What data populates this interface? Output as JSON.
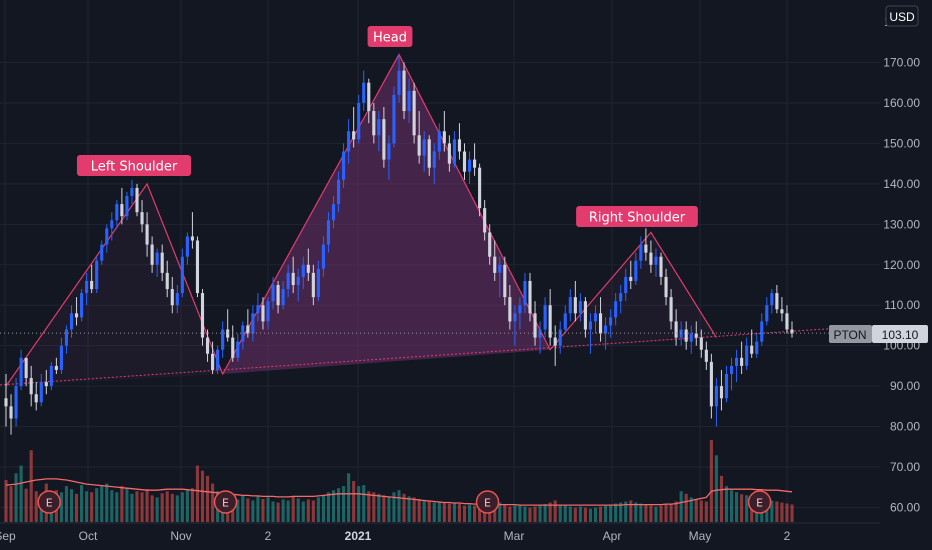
{
  "chart_data": {
    "type": "candlestick",
    "symbol": "PTON",
    "currency": "USD",
    "last_price": "103.10",
    "ylim": [
      57,
      180
    ],
    "y_ticks": [
      "60.00",
      "70.00",
      "80.00",
      "90.00",
      "100.00",
      "110.00",
      "120.00",
      "130.00",
      "140.00",
      "150.00",
      "160.00",
      "170.00"
    ],
    "x_ticks": [
      "Sep",
      "Oct",
      "Nov",
      "2",
      "2021",
      "Mar",
      "Apr",
      "May",
      "2"
    ],
    "x_tick_bold": "2021",
    "pattern": {
      "labels": [
        "Left Shoulder",
        "Head",
        "Right Shoulder"
      ],
      "points": [
        {
          "i": 0,
          "price": 90
        },
        {
          "i": 28,
          "price": 140
        },
        {
          "i": 43,
          "price": 93
        },
        {
          "i": 78,
          "price": 172
        },
        {
          "i": 108,
          "price": 99
        },
        {
          "i": 128,
          "price": 128
        },
        {
          "i": 141,
          "price": 102
        },
        {
          "i": 167,
          "price": 105.5
        }
      ]
    },
    "earnings_marker": "E",
    "earnings_at": [
      5,
      40,
      92,
      146
    ],
    "colors": {
      "background": "#131722",
      "grid": "#1f2433",
      "up": "#2962ff",
      "down": "#d1d4dc",
      "volume_up": "#26a69a",
      "volume_down": "#ef5350",
      "pattern": "#e23c6f",
      "pattern_fill": "#6f2f6c",
      "volume_ma": "#f26a6a",
      "price_line": "#9598a1"
    },
    "candles": [
      [
        87,
        93,
        80,
        85
      ],
      [
        85,
        88,
        78,
        82
      ],
      [
        82,
        92,
        80,
        90
      ],
      [
        90,
        99,
        89,
        97
      ],
      [
        97,
        96,
        90,
        92
      ],
      [
        92,
        95,
        85,
        88
      ],
      [
        88,
        91,
        84,
        86
      ],
      [
        86,
        93,
        85,
        91
      ],
      [
        91,
        94,
        88,
        90
      ],
      [
        90,
        96,
        89,
        95
      ],
      [
        95,
        97,
        93,
        94
      ],
      [
        94,
        102,
        93,
        100
      ],
      [
        100,
        105,
        98,
        104
      ],
      [
        104,
        110,
        102,
        108
      ],
      [
        108,
        112,
        105,
        107
      ],
      [
        107,
        114,
        106,
        113
      ],
      [
        113,
        118,
        110,
        116
      ],
      [
        116,
        120,
        113,
        114
      ],
      [
        114,
        122,
        113,
        121
      ],
      [
        121,
        126,
        120,
        125
      ],
      [
        125,
        130,
        123,
        129
      ],
      [
        129,
        133,
        126,
        131
      ],
      [
        131,
        136,
        129,
        135
      ],
      [
        135,
        139,
        130,
        132
      ],
      [
        132,
        138,
        131,
        137
      ],
      [
        137,
        141,
        135,
        139
      ],
      [
        139,
        140,
        132,
        133
      ],
      [
        133,
        136,
        128,
        130
      ],
      [
        130,
        133,
        122,
        125
      ],
      [
        125,
        127,
        118,
        120
      ],
      [
        120,
        124,
        117,
        123
      ],
      [
        123,
        125,
        116,
        118
      ],
      [
        118,
        121,
        112,
        114
      ],
      [
        114,
        117,
        108,
        110
      ],
      [
        110,
        115,
        108,
        113
      ],
      [
        113,
        124,
        112,
        122
      ],
      [
        122,
        128,
        120,
        127
      ],
      [
        127,
        133,
        124,
        126
      ],
      [
        126,
        127,
        112,
        113
      ],
      [
        113,
        114,
        100,
        102
      ],
      [
        102,
        104,
        96,
        98
      ],
      [
        98,
        101,
        93,
        94
      ],
      [
        94,
        100,
        93,
        99
      ],
      [
        99,
        106,
        97,
        104
      ],
      [
        104,
        109,
        101,
        102
      ],
      [
        102,
        105,
        96,
        97
      ],
      [
        97,
        103,
        96,
        101
      ],
      [
        101,
        106,
        99,
        105
      ],
      [
        105,
        109,
        102,
        103
      ],
      [
        103,
        110,
        101,
        108
      ],
      [
        108,
        113,
        106,
        110
      ],
      [
        110,
        112,
        104,
        106
      ],
      [
        106,
        112,
        104,
        111
      ],
      [
        111,
        117,
        109,
        115
      ],
      [
        115,
        116,
        108,
        110
      ],
      [
        110,
        116,
        109,
        114
      ],
      [
        114,
        120,
        112,
        118
      ],
      [
        118,
        122,
        113,
        115
      ],
      [
        115,
        119,
        111,
        117
      ],
      [
        117,
        122,
        114,
        120
      ],
      [
        120,
        124,
        116,
        118
      ],
      [
        118,
        120,
        110,
        112
      ],
      [
        112,
        121,
        111,
        119
      ],
      [
        119,
        127,
        117,
        125
      ],
      [
        125,
        133,
        123,
        131
      ],
      [
        131,
        137,
        129,
        135
      ],
      [
        135,
        143,
        133,
        141
      ],
      [
        141,
        150,
        139,
        148
      ],
      [
        148,
        156,
        145,
        153
      ],
      [
        153,
        159,
        149,
        151
      ],
      [
        151,
        162,
        150,
        160
      ],
      [
        160,
        168,
        158,
        165
      ],
      [
        165,
        166,
        155,
        158
      ],
      [
        158,
        160,
        150,
        152
      ],
      [
        152,
        158,
        148,
        156
      ],
      [
        156,
        159,
        144,
        146
      ],
      [
        146,
        152,
        141,
        150
      ],
      [
        150,
        164,
        149,
        162
      ],
      [
        162,
        172,
        160,
        168
      ],
      [
        168,
        170,
        156,
        158
      ],
      [
        158,
        166,
        155,
        163
      ],
      [
        163,
        165,
        150,
        152
      ],
      [
        152,
        158,
        145,
        147
      ],
      [
        147,
        153,
        143,
        151
      ],
      [
        151,
        152,
        142,
        144
      ],
      [
        144,
        150,
        140,
        148
      ],
      [
        148,
        155,
        146,
        153
      ],
      [
        153,
        158,
        148,
        150
      ],
      [
        150,
        152,
        143,
        145
      ],
      [
        145,
        153,
        144,
        151
      ],
      [
        151,
        155,
        146,
        148
      ],
      [
        148,
        150,
        141,
        143
      ],
      [
        143,
        148,
        140,
        146
      ],
      [
        146,
        150,
        142,
        144
      ],
      [
        144,
        145,
        132,
        134
      ],
      [
        134,
        136,
        126,
        128
      ],
      [
        128,
        130,
        120,
        122
      ],
      [
        122,
        126,
        116,
        118
      ],
      [
        118,
        122,
        112,
        120
      ],
      [
        120,
        122,
        110,
        112
      ],
      [
        112,
        115,
        104,
        106
      ],
      [
        106,
        110,
        100,
        108
      ],
      [
        108,
        112,
        104,
        110
      ],
      [
        110,
        118,
        108,
        116
      ],
      [
        116,
        118,
        106,
        108
      ],
      [
        108,
        111,
        100,
        102
      ],
      [
        102,
        106,
        98,
        104
      ],
      [
        104,
        112,
        102,
        110
      ],
      [
        110,
        114,
        100,
        102
      ],
      [
        102,
        105,
        95,
        100
      ],
      [
        100,
        106,
        98,
        104
      ],
      [
        104,
        110,
        103,
        108
      ],
      [
        108,
        114,
        106,
        112
      ],
      [
        112,
        116,
        106,
        108
      ],
      [
        108,
        113,
        106,
        111
      ],
      [
        111,
        112,
        102,
        104
      ],
      [
        104,
        108,
        98,
        106
      ],
      [
        106,
        110,
        103,
        108
      ],
      [
        108,
        112,
        101,
        103
      ],
      [
        103,
        107,
        99,
        105
      ],
      [
        105,
        109,
        102,
        107
      ],
      [
        107,
        113,
        105,
        111
      ],
      [
        111,
        115,
        108,
        113
      ],
      [
        113,
        119,
        111,
        117
      ],
      [
        117,
        121,
        114,
        116
      ],
      [
        116,
        123,
        115,
        121
      ],
      [
        121,
        127,
        119,
        125
      ],
      [
        125,
        129,
        121,
        123
      ],
      [
        123,
        126,
        118,
        120
      ],
      [
        120,
        124,
        117,
        122
      ],
      [
        122,
        123,
        115,
        117
      ],
      [
        117,
        119,
        110,
        112
      ],
      [
        112,
        114,
        104,
        106
      ],
      [
        106,
        109,
        100,
        102
      ],
      [
        102,
        106,
        100,
        104
      ],
      [
        104,
        106,
        99,
        101
      ],
      [
        101,
        105,
        98,
        103
      ],
      [
        103,
        106,
        100,
        102
      ],
      [
        102,
        104,
        97,
        99
      ],
      [
        99,
        101,
        94,
        96
      ],
      [
        96,
        98,
        82,
        85
      ],
      [
        85,
        92,
        80,
        90
      ],
      [
        90,
        94,
        84,
        87
      ],
      [
        87,
        95,
        86,
        93
      ],
      [
        93,
        97,
        89,
        95
      ],
      [
        95,
        99,
        91,
        97
      ],
      [
        97,
        101,
        93,
        95
      ],
      [
        95,
        102,
        94,
        100
      ],
      [
        100,
        104,
        97,
        98
      ],
      [
        98,
        103,
        97,
        101
      ],
      [
        101,
        108,
        100,
        106
      ],
      [
        106,
        112,
        105,
        110
      ],
      [
        110,
        114,
        108,
        113
      ],
      [
        113,
        115,
        108,
        109
      ],
      [
        109,
        112,
        106,
        108
      ],
      [
        108,
        110,
        103,
        104
      ],
      [
        104,
        106,
        102,
        103
      ]
    ],
    "volume": [
      82,
      70,
      95,
      110,
      65,
      140,
      60,
      55,
      75,
      50,
      62,
      58,
      70,
      64,
      55,
      72,
      60,
      58,
      66,
      70,
      75,
      62,
      58,
      70,
      65,
      55,
      60,
      58,
      64,
      52,
      48,
      56,
      60,
      55,
      52,
      58,
      62,
      66,
      110,
      100,
      90,
      75,
      60,
      55,
      50,
      48,
      44,
      52,
      46,
      42,
      50,
      45,
      48,
      40,
      38,
      44,
      42,
      50,
      46,
      40,
      44,
      42,
      48,
      52,
      58,
      62,
      66,
      70,
      95,
      80,
      70,
      72,
      60,
      58,
      55,
      52,
      50,
      58,
      62,
      55,
      50,
      48,
      45,
      42,
      40,
      38,
      40,
      38,
      36,
      38,
      35,
      32,
      34,
      32,
      30,
      32,
      34,
      36,
      38,
      34,
      30,
      32,
      34,
      30,
      28,
      30,
      32,
      35,
      38,
      42,
      34,
      32,
      30,
      28,
      30,
      28,
      26,
      28,
      30,
      32,
      34,
      36,
      38,
      40,
      42,
      38,
      36,
      34,
      32,
      30,
      32,
      34,
      36,
      40,
      60,
      55,
      48,
      44,
      42,
      40,
      160,
      130,
      90,
      70,
      62,
      58,
      54,
      52,
      50,
      48,
      46,
      44,
      42,
      40,
      38,
      36,
      34
    ],
    "volume_ma": [
      72,
      73,
      74,
      76,
      78,
      80,
      82,
      83,
      84,
      84,
      84,
      83,
      82,
      80,
      78,
      76,
      74,
      73,
      72,
      71,
      70,
      69,
      68,
      67,
      66,
      65,
      64,
      63,
      62,
      62,
      62,
      63,
      64,
      64,
      64,
      64,
      63,
      62,
      61,
      60,
      59,
      58,
      57,
      56,
      55,
      54,
      53,
      52,
      52,
      51,
      51,
      50,
      50,
      50,
      49,
      49,
      49,
      50,
      50,
      50,
      50,
      50,
      51,
      52,
      53,
      54,
      55,
      55,
      55,
      55,
      55,
      54,
      53,
      52,
      51,
      50,
      49,
      48,
      47,
      46,
      45,
      44,
      43,
      42,
      41,
      40,
      39,
      38,
      38,
      37,
      37,
      36,
      36,
      35,
      35,
      35,
      35,
      34,
      34,
      34,
      34,
      34,
      33,
      33,
      33,
      33,
      33,
      33,
      33,
      33,
      33,
      33,
      33,
      33,
      33,
      33,
      33,
      33,
      33,
      33,
      33,
      33,
      33,
      34,
      34,
      34,
      34,
      34,
      34,
      34,
      34,
      35,
      35,
      36,
      38,
      40,
      42,
      44,
      46,
      48,
      60,
      62,
      63,
      64,
      64,
      64,
      64,
      64,
      64,
      63,
      63,
      62,
      62,
      62,
      61,
      60,
      59
    ]
  }
}
